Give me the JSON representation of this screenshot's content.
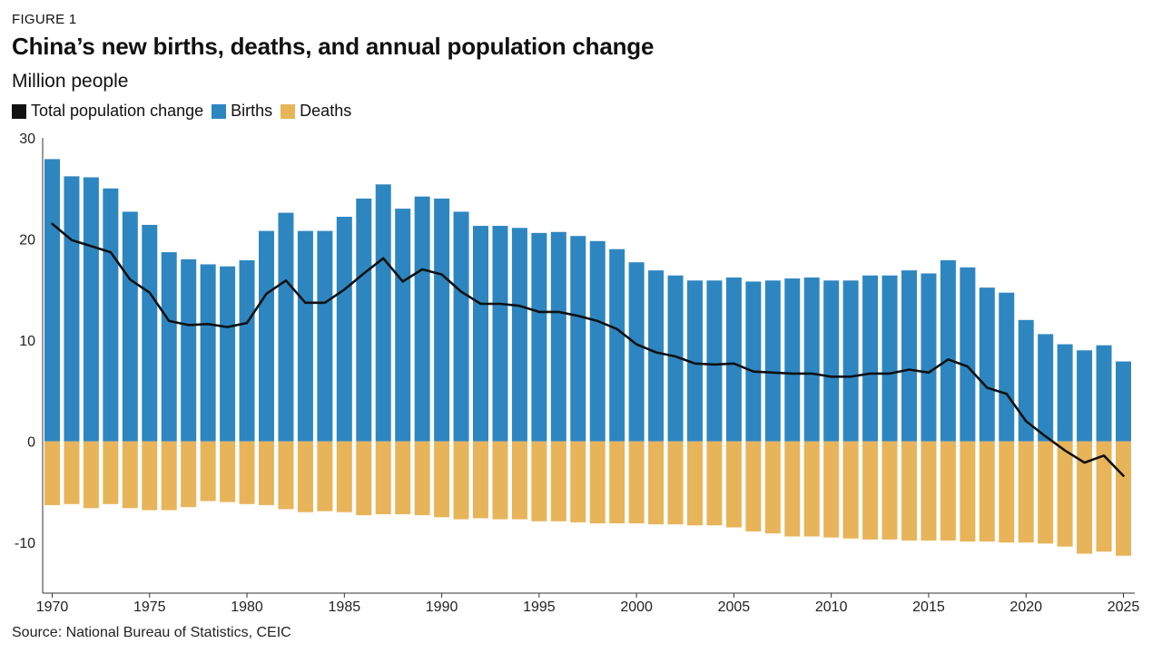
{
  "header": {
    "figure_label": "FIGURE 1",
    "title": "China’s new births, deaths, and annual population change",
    "subtitle": "Million people"
  },
  "legend": [
    {
      "label": "Total population change",
      "color": "#111111"
    },
    {
      "label": "Births",
      "color": "#2e86c1"
    },
    {
      "label": "Deaths",
      "color": "#e8b45a"
    }
  ],
  "source": "Source: National Bureau of Statistics, CEIC",
  "chart_data": {
    "type": "bar",
    "title": "China’s new births, deaths, and annual population change",
    "ylabel": "Million people",
    "ylim": [
      -15,
      30
    ],
    "yticks": [
      30,
      20,
      10,
      0,
      -10
    ],
    "xticks": [
      1970,
      1975,
      1980,
      1985,
      1990,
      1995,
      2000,
      2005,
      2010,
      2015,
      2020,
      2025
    ],
    "grid": false,
    "legend_position": "top-left",
    "x": [
      1970,
      1971,
      1972,
      1973,
      1974,
      1975,
      1976,
      1977,
      1978,
      1979,
      1980,
      1981,
      1982,
      1983,
      1984,
      1985,
      1986,
      1987,
      1988,
      1989,
      1990,
      1991,
      1992,
      1993,
      1994,
      1995,
      1996,
      1997,
      1998,
      1999,
      2000,
      2001,
      2002,
      2003,
      2004,
      2005,
      2006,
      2007,
      2008,
      2009,
      2010,
      2011,
      2012,
      2013,
      2014,
      2015,
      2016,
      2017,
      2018,
      2019,
      2020,
      2021,
      2022,
      2023,
      2024,
      2025
    ],
    "series": [
      {
        "name": "Births",
        "type": "bar",
        "color": "#2e86c1",
        "values": [
          27.9,
          26.2,
          26.1,
          25.0,
          22.7,
          21.4,
          18.7,
          18.0,
          17.5,
          17.3,
          17.9,
          20.8,
          22.6,
          20.8,
          20.8,
          22.2,
          24.0,
          25.4,
          23.0,
          24.2,
          24.0,
          22.7,
          21.3,
          21.3,
          21.1,
          20.6,
          20.7,
          20.3,
          19.8,
          19.0,
          17.7,
          16.9,
          16.4,
          15.9,
          15.9,
          16.2,
          15.8,
          15.9,
          16.1,
          16.2,
          15.9,
          15.9,
          16.4,
          16.4,
          16.9,
          16.6,
          17.9,
          17.2,
          15.2,
          14.7,
          12.0,
          10.6,
          9.6,
          9.0,
          9.5,
          7.9
        ]
      },
      {
        "name": "Deaths",
        "type": "bar",
        "color": "#e8b45a",
        "values": [
          -6.3,
          -6.2,
          -6.6,
          -6.2,
          -6.6,
          -6.8,
          -6.8,
          -6.5,
          -5.9,
          -6.0,
          -6.2,
          -6.3,
          -6.7,
          -7.0,
          -6.9,
          -7.0,
          -7.3,
          -7.2,
          -7.2,
          -7.3,
          -7.5,
          -7.7,
          -7.6,
          -7.7,
          -7.7,
          -7.9,
          -7.9,
          -8.0,
          -8.1,
          -8.1,
          -8.1,
          -8.2,
          -8.2,
          -8.3,
          -8.3,
          -8.5,
          -8.9,
          -9.1,
          -9.4,
          -9.4,
          -9.5,
          -9.6,
          -9.7,
          -9.7,
          -9.8,
          -9.8,
          -9.8,
          -9.9,
          -9.9,
          -10.0,
          -10.0,
          -10.1,
          -10.4,
          -11.1,
          -10.9,
          -11.3
        ]
      },
      {
        "name": "Total population change",
        "type": "line",
        "color": "#111111",
        "values": [
          21.5,
          19.9,
          19.3,
          18.7,
          16.0,
          14.7,
          11.9,
          11.5,
          11.6,
          11.3,
          11.7,
          14.6,
          15.9,
          13.7,
          13.7,
          15.0,
          16.6,
          18.1,
          15.8,
          17.0,
          16.5,
          14.8,
          13.6,
          13.6,
          13.4,
          12.8,
          12.8,
          12.4,
          11.9,
          11.1,
          9.6,
          8.8,
          8.4,
          7.7,
          7.6,
          7.7,
          6.9,
          6.8,
          6.7,
          6.7,
          6.4,
          6.4,
          6.7,
          6.7,
          7.1,
          6.8,
          8.1,
          7.4,
          5.3,
          4.7,
          2.0,
          0.5,
          -0.9,
          -2.1,
          -1.4,
          -3.4
        ]
      }
    ]
  }
}
